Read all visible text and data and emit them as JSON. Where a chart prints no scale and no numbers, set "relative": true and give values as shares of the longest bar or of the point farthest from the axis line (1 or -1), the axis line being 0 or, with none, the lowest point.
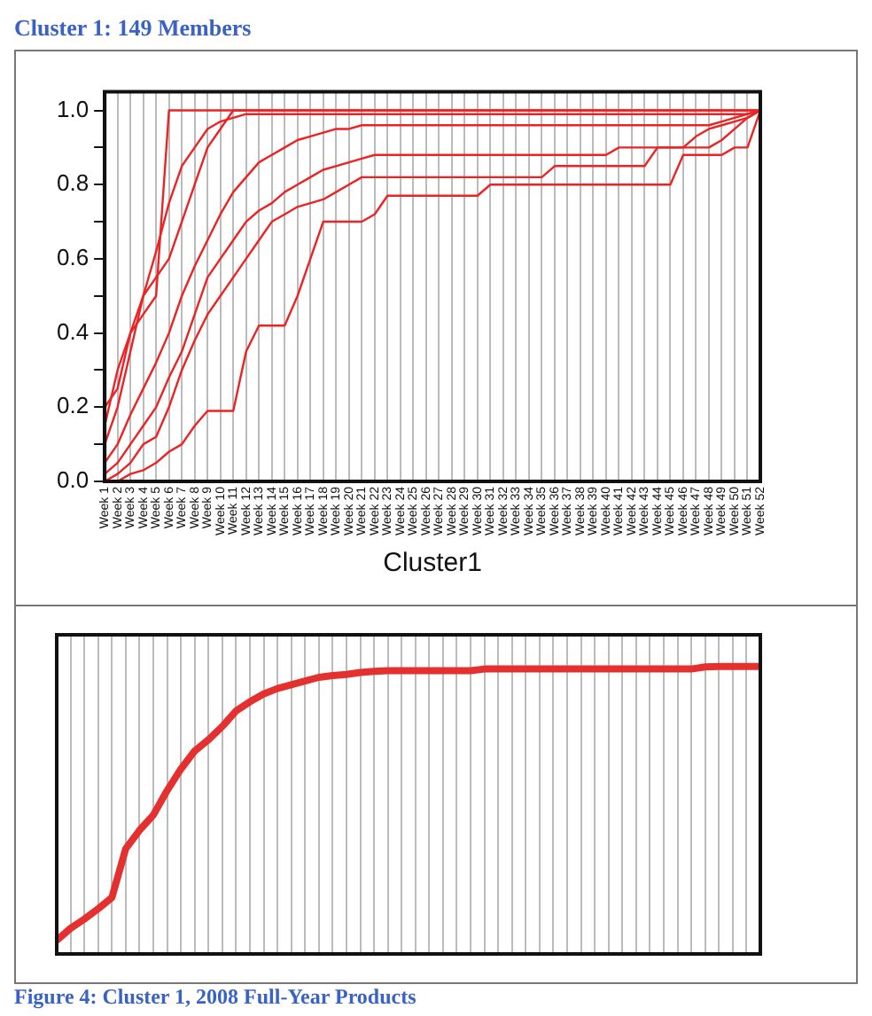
{
  "chart_data": [
    {
      "type": "line",
      "title": "Cluster 1: 149 Members",
      "xlabel": "Cluster1",
      "categories": [
        "Week 1",
        "Week 2",
        "Week 3",
        "Week 4",
        "Week 5",
        "Week 6",
        "Week 7",
        "Week 8",
        "Week 9",
        "Week 10",
        "Week 11",
        "Week 12",
        "Week 13",
        "Week 14",
        "Week 15",
        "Week 16",
        "Week 17",
        "Week 18",
        "Week 19",
        "Week 20",
        "Week 21",
        "Week 22",
        "Week 23",
        "Week 24",
        "Week 25",
        "Week 26",
        "Week 27",
        "Week 28",
        "Week 29",
        "Week 30",
        "Week 31",
        "Week 32",
        "Week 33",
        "Week 34",
        "Week 35",
        "Week 36",
        "Week 37",
        "Week 38",
        "Week 39",
        "Week 40",
        "Week 41",
        "Week 42",
        "Week 43",
        "Week 44",
        "Week 45",
        "Week 46",
        "Week 47",
        "Week 48",
        "Week 49",
        "Week 50",
        "Week 51",
        "Week 52"
      ],
      "series": [
        {
          "color": "#ee2222",
          "values": [
            0.2,
            0.25,
            0.4,
            0.45,
            0.5,
            1,
            1,
            1,
            1,
            1,
            1,
            1,
            1,
            1,
            1,
            1,
            1,
            1,
            1,
            1,
            1,
            1,
            1,
            1,
            1,
            1,
            1,
            1,
            1,
            1,
            1,
            1,
            1,
            1,
            1,
            1,
            1,
            1,
            1,
            1,
            1,
            1,
            1,
            1,
            1,
            1,
            1,
            1,
            1,
            1,
            1,
            1
          ]
        },
        {
          "color": "#ee2222",
          "values": [
            0,
            0,
            0.02,
            0.03,
            0.05,
            0.08,
            0.1,
            0.15,
            0.19,
            0.19,
            0.19,
            0.35,
            0.42,
            0.42,
            0.42,
            0.5,
            0.6,
            0.7,
            0.7,
            0.7,
            0.7,
            0.72,
            0.77,
            0.77,
            0.77,
            0.77,
            0.77,
            0.77,
            0.77,
            0.77,
            0.8,
            0.8,
            0.8,
            0.8,
            0.8,
            0.8,
            0.8,
            0.8,
            0.8,
            0.8,
            0.8,
            0.8,
            0.8,
            0.8,
            0.8,
            0.88,
            0.88,
            0.88,
            0.88,
            0.9,
            0.9,
            1
          ]
        },
        {
          "color": "#ee2222",
          "values": [
            0.05,
            0.1,
            0.18,
            0.25,
            0.32,
            0.4,
            0.5,
            0.58,
            0.65,
            0.72,
            0.78,
            0.82,
            0.86,
            0.88,
            0.9,
            0.92,
            0.93,
            0.94,
            0.95,
            0.95,
            0.96,
            0.96,
            0.96,
            0.96,
            0.96,
            0.96,
            0.96,
            0.96,
            0.96,
            0.96,
            0.96,
            0.96,
            0.96,
            0.96,
            0.96,
            0.96,
            0.96,
            0.96,
            0.96,
            0.96,
            0.96,
            0.96,
            0.96,
            0.96,
            0.96,
            0.96,
            0.96,
            0.96,
            0.97,
            0.98,
            0.99,
            1
          ]
        },
        {
          "color": "#ee2222",
          "values": [
            0.1,
            0.2,
            0.35,
            0.5,
            0.62,
            0.75,
            0.85,
            0.9,
            0.95,
            0.97,
            0.98,
            0.99,
            0.99,
            0.99,
            0.99,
            0.99,
            0.99,
            0.99,
            0.99,
            0.99,
            0.99,
            0.99,
            0.99,
            0.99,
            0.99,
            0.99,
            0.99,
            0.99,
            0.99,
            0.99,
            0.99,
            0.99,
            0.99,
            0.99,
            0.99,
            0.99,
            0.99,
            0.99,
            0.99,
            0.99,
            0.99,
            0.99,
            0.99,
            0.99,
            0.99,
            0.99,
            0.99,
            0.99,
            0.99,
            0.99,
            0.99,
            1
          ]
        },
        {
          "color": "#ee2222",
          "values": [
            0.02,
            0.05,
            0.1,
            0.15,
            0.2,
            0.28,
            0.35,
            0.45,
            0.55,
            0.6,
            0.65,
            0.7,
            0.73,
            0.75,
            0.78,
            0.8,
            0.82,
            0.84,
            0.85,
            0.86,
            0.87,
            0.88,
            0.88,
            0.88,
            0.88,
            0.88,
            0.88,
            0.88,
            0.88,
            0.88,
            0.88,
            0.88,
            0.88,
            0.88,
            0.88,
            0.88,
            0.88,
            0.88,
            0.88,
            0.88,
            0.9,
            0.9,
            0.9,
            0.9,
            0.9,
            0.9,
            0.93,
            0.95,
            0.96,
            0.97,
            0.98,
            1
          ]
        },
        {
          "color": "#ee2222",
          "values": [
            0.15,
            0.3,
            0.4,
            0.5,
            0.55,
            0.6,
            0.7,
            0.8,
            0.9,
            0.95,
            1,
            1,
            1,
            1,
            1,
            1,
            1,
            1,
            1,
            1,
            1,
            1,
            1,
            1,
            1,
            1,
            1,
            1,
            1,
            1,
            1,
            1,
            1,
            1,
            1,
            1,
            1,
            1,
            1,
            1,
            1,
            1,
            1,
            1,
            1,
            1,
            1,
            1,
            1,
            1,
            1,
            1
          ]
        },
        {
          "color": "#ee2222",
          "values": [
            0,
            0.02,
            0.05,
            0.1,
            0.12,
            0.2,
            0.3,
            0.38,
            0.45,
            0.5,
            0.55,
            0.6,
            0.65,
            0.7,
            0.72,
            0.74,
            0.75,
            0.76,
            0.78,
            0.8,
            0.82,
            0.82,
            0.82,
            0.82,
            0.82,
            0.82,
            0.82,
            0.82,
            0.82,
            0.82,
            0.82,
            0.82,
            0.82,
            0.82,
            0.82,
            0.85,
            0.85,
            0.85,
            0.85,
            0.85,
            0.85,
            0.85,
            0.85,
            0.9,
            0.9,
            0.9,
            0.9,
            0.9,
            0.92,
            0.95,
            0.98,
            1
          ]
        }
      ],
      "ylim": [
        0,
        1.05
      ],
      "yticks": [
        {
          "value": 0,
          "label": "0.0"
        },
        {
          "value": 0.1,
          "label": null
        },
        {
          "value": 0.2,
          "label": "0.2"
        },
        {
          "value": 0.3,
          "label": null
        },
        {
          "value": 0.4,
          "label": "0.4"
        },
        {
          "value": 0.5,
          "label": null
        },
        {
          "value": 0.6,
          "label": "0.6"
        },
        {
          "value": 0.7,
          "label": null
        },
        {
          "value": 0.8,
          "label": "0.8"
        },
        {
          "value": 0.9,
          "label": null
        },
        {
          "value": 1,
          "label": "1.0"
        }
      ],
      "grid": "x"
    },
    {
      "type": "line",
      "relative": true,
      "grid": "x",
      "categories": [
        null,
        null,
        null,
        null,
        null,
        null,
        null,
        null,
        null,
        null,
        null,
        null,
        null,
        null,
        null,
        null,
        null,
        null,
        null,
        null,
        null,
        null,
        null,
        null,
        null,
        null,
        null,
        null,
        null,
        null,
        null,
        null,
        null,
        null,
        null,
        null,
        null,
        null,
        null,
        null,
        null,
        null,
        null,
        null,
        null,
        null,
        null,
        null,
        null,
        null,
        null,
        null
      ],
      "series": [
        {
          "color": "#e53030",
          "values": [
            0.047,
            0.089,
            0.121,
            0.157,
            0.196,
            0.366,
            0.43,
            0.483,
            0.568,
            0.643,
            0.706,
            0.745,
            0.791,
            0.845,
            0.877,
            0.904,
            0.923,
            0.936,
            0.949,
            0.962,
            0.968,
            0.972,
            0.979,
            0.983,
            0.985,
            0.985,
            0.985,
            0.985,
            0.985,
            0.985,
            0.985,
            0.991,
            0.991,
            0.991,
            0.991,
            0.991,
            0.991,
            0.991,
            0.991,
            0.991,
            0.991,
            0.991,
            0.991,
            0.991,
            0.991,
            0.991,
            0.991,
            0.998,
            1,
            1,
            1,
            1
          ]
        }
      ],
      "annotations": [
        "Figure 4: Cluster 1, 2008 Full-Year Products"
      ]
    }
  ]
}
